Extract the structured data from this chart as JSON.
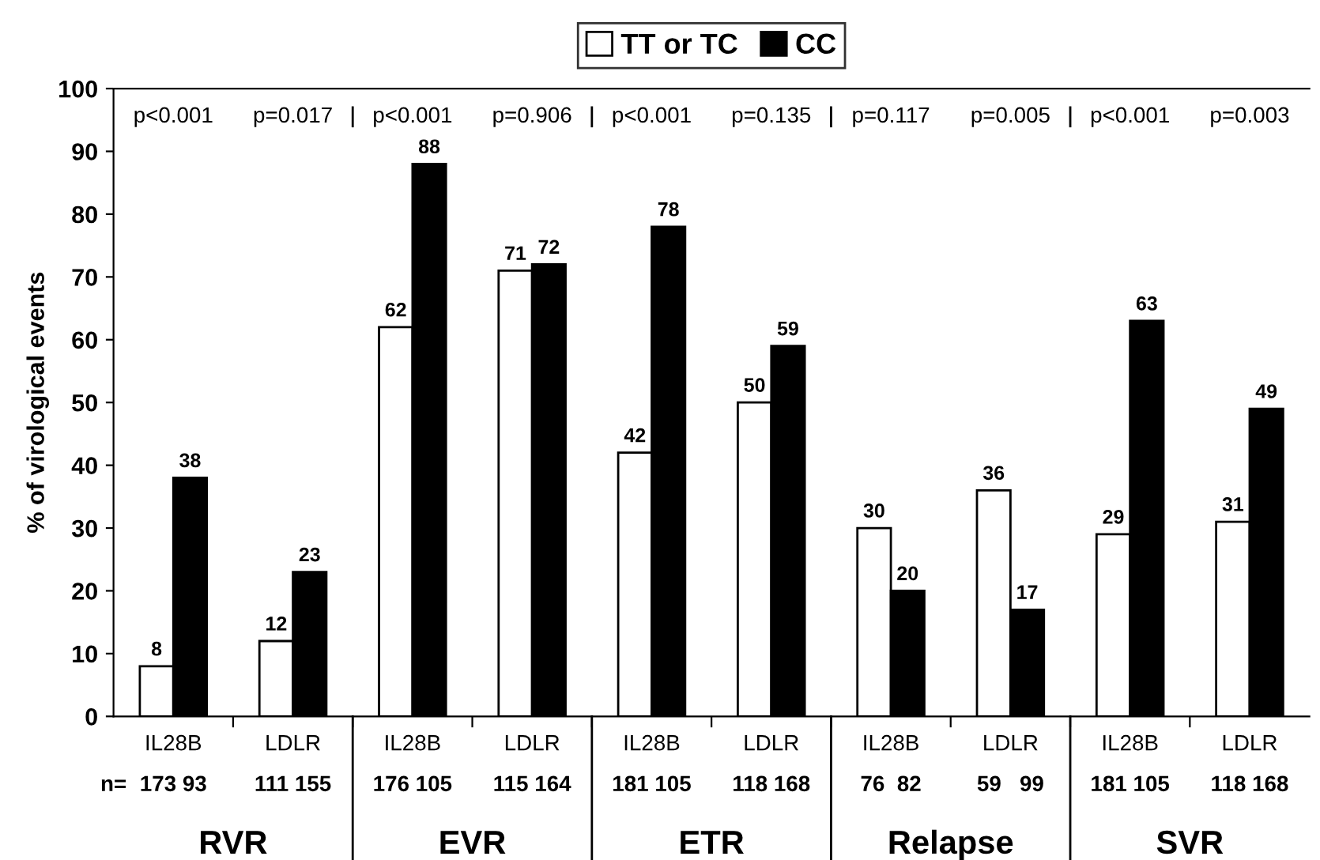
{
  "chart_data": {
    "type": "bar",
    "ylabel": "% of virological events",
    "categories": [
      "IL28B",
      "LDLR",
      "IL28B",
      "LDLR",
      "IL28B",
      "LDLR",
      "IL28B",
      "LDLR",
      "IL28B",
      "LDLR"
    ],
    "series": [
      {
        "name": "TT or TC",
        "color": "#ffffff",
        "values": [
          8,
          12,
          62,
          71,
          42,
          50,
          30,
          36,
          29,
          31
        ]
      },
      {
        "name": "CC",
        "color": "#000000",
        "values": [
          38,
          23,
          88,
          72,
          78,
          59,
          20,
          17,
          63,
          49
        ]
      }
    ],
    "ylim": [
      0,
      100
    ],
    "yticks": [
      0,
      10,
      20,
      30,
      40,
      50,
      60,
      70,
      80,
      90,
      100
    ],
    "data_labels": true,
    "legend": "top",
    "grid": false,
    "annotations": [
      "p<0.001",
      "p=0.017",
      "p<0.001",
      "p=0.906",
      "p<0.001",
      "p=0.135",
      "p=0.117",
      "p=0.005",
      "p<0.001",
      "p=0.003",
      "n=",
      "173 93",
      "111 155",
      "176 105",
      "115 164",
      "181 105",
      "118 168",
      "76  82",
      "59   99",
      "181 105",
      "118 168",
      "RVR",
      "EVR",
      "ETR",
      "Relapse",
      "SVR"
    ]
  }
}
